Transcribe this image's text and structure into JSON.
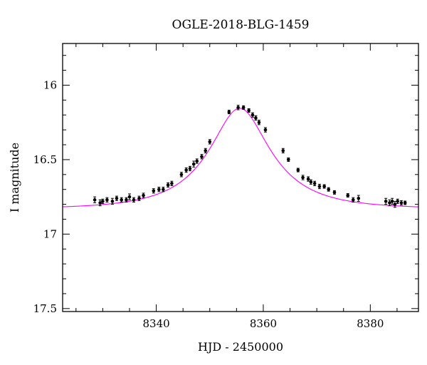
{
  "chart_data": {
    "type": "scatter",
    "title": "OGLE-2018-BLG-1459",
    "xlabel": "HJD - 2450000",
    "ylabel": "I magnitude",
    "xlim": [
      8322.5,
      8389
    ],
    "ylim": [
      17.52,
      15.72
    ],
    "y_inverted": true,
    "grid": false,
    "legend": "none",
    "x_ticks": [
      "8340",
      "8360",
      "8380"
    ],
    "y_ticks": [
      "16",
      "16.5",
      "17",
      "17.5"
    ],
    "model_color": "#ff00ff",
    "point_color": "#000000",
    "model": {
      "name": "",
      "t0": 8355.6,
      "peak_mag": 16.155,
      "baseline_mag": 16.83,
      "tE": 13,
      "u0": 0.45
    },
    "series": [
      {
        "name": "",
        "x": [
          8328.5,
          8329.5,
          8330.0,
          8330.8,
          8331.8,
          8332.6,
          8333.5,
          8334.4,
          8335.0,
          8335.8,
          8336.8,
          8337.6,
          8339.5,
          8340.5,
          8341.3,
          8342.2,
          8342.9,
          8344.7,
          8345.6,
          8346.3,
          8347.0,
          8347.6,
          8348.5,
          8349.2,
          8350.0,
          8353.6,
          8355.3,
          8356.3,
          8357.3,
          8358.0,
          8358.6,
          8359.2,
          8360.4,
          8363.7,
          8364.7,
          8366.5,
          8367.4,
          8368.4,
          8368.9,
          8369.6,
          8370.5,
          8371.4,
          8372.2,
          8373.3,
          8375.8,
          8376.8,
          8377.8,
          8382.9,
          8383.6,
          8384.1,
          8384.6,
          8385.1,
          8385.8,
          8386.5
        ],
        "y": [
          16.77,
          16.79,
          16.78,
          16.77,
          16.78,
          16.76,
          16.77,
          16.77,
          16.75,
          16.77,
          16.76,
          16.74,
          16.71,
          16.7,
          16.7,
          16.67,
          16.66,
          16.6,
          16.57,
          16.56,
          16.53,
          16.51,
          16.48,
          16.44,
          16.38,
          16.18,
          16.15,
          16.15,
          16.17,
          16.2,
          16.22,
          16.25,
          16.3,
          16.44,
          16.5,
          16.57,
          16.62,
          16.63,
          16.65,
          16.66,
          16.68,
          16.68,
          16.7,
          16.72,
          16.74,
          16.77,
          16.76,
          16.78,
          16.79,
          16.78,
          16.8,
          16.78,
          16.79,
          16.79
        ],
        "err": [
          0.02,
          0.02,
          0.015,
          0.015,
          0.02,
          0.015,
          0.015,
          0.015,
          0.02,
          0.015,
          0.015,
          0.015,
          0.015,
          0.015,
          0.015,
          0.015,
          0.015,
          0.015,
          0.015,
          0.015,
          0.02,
          0.015,
          0.015,
          0.015,
          0.015,
          0.012,
          0.015,
          0.012,
          0.012,
          0.015,
          0.015,
          0.015,
          0.015,
          0.015,
          0.012,
          0.012,
          0.015,
          0.015,
          0.015,
          0.015,
          0.015,
          0.012,
          0.012,
          0.012,
          0.012,
          0.015,
          0.02,
          0.02,
          0.02,
          0.02,
          0.02,
          0.015,
          0.015,
          0.012
        ]
      }
    ]
  }
}
